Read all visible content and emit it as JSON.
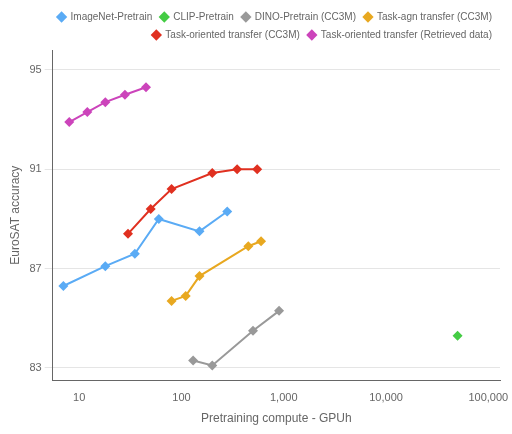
{
  "chart_data": {
    "type": "line",
    "x_label": "Pretraining compute - GPUh",
    "y_label": "EuroSAT accuracy",
    "log": "x",
    "xlim": [
      5.5,
      130000
    ],
    "xticks": [
      10,
      100,
      {
        "value": 1000,
        "label": "1,000"
      },
      {
        "value": 10000,
        "label": "10,000"
      },
      {
        "value": 100000,
        "label": "100,000"
      }
    ],
    "ylim": [
      82.5,
      95.8
    ],
    "yticks": [
      83,
      87,
      91,
      95
    ],
    "grid": "y",
    "legend": "upper right",
    "marker": "diamond",
    "line_style": "solid",
    "series": [
      {
        "name": "ImageNet-Pretrain",
        "color": "#5aabf5",
        "x": [
          7,
          18,
          35,
          60,
          150,
          280
        ],
        "values": [
          86.3,
          87.1,
          87.6,
          89.0,
          88.5,
          89.3
        ]
      },
      {
        "name": "CLIP-Pretrain",
        "color": "#44cc44",
        "x": [
          50000
        ],
        "values": [
          84.3
        ]
      },
      {
        "name": "DINO-Pretrain (CC3M)",
        "color": "#999999",
        "x": [
          130,
          200,
          500,
          900
        ],
        "values": [
          83.3,
          83.1,
          84.5,
          85.3
        ]
      },
      {
        "name": "Task-agn transfer (CC3M)",
        "color": "#e8a820",
        "x": [
          80,
          110,
          150,
          450,
          600
        ],
        "values": [
          85.7,
          85.9,
          86.7,
          87.9,
          88.1
        ]
      },
      {
        "name": "Task-oriented transfer (CC3M)",
        "color": "#e03020",
        "x": [
          30,
          50,
          80,
          200,
          350,
          550
        ],
        "values": [
          88.4,
          89.4,
          90.2,
          90.85,
          91.0,
          91.0
        ]
      },
      {
        "name": "Task-oriented transfer (Retrieved data)",
        "color": "#cc44bb",
        "x": [
          8,
          12,
          18,
          28,
          45
        ],
        "values": [
          92.9,
          93.3,
          93.7,
          94.0,
          94.3
        ]
      }
    ]
  }
}
